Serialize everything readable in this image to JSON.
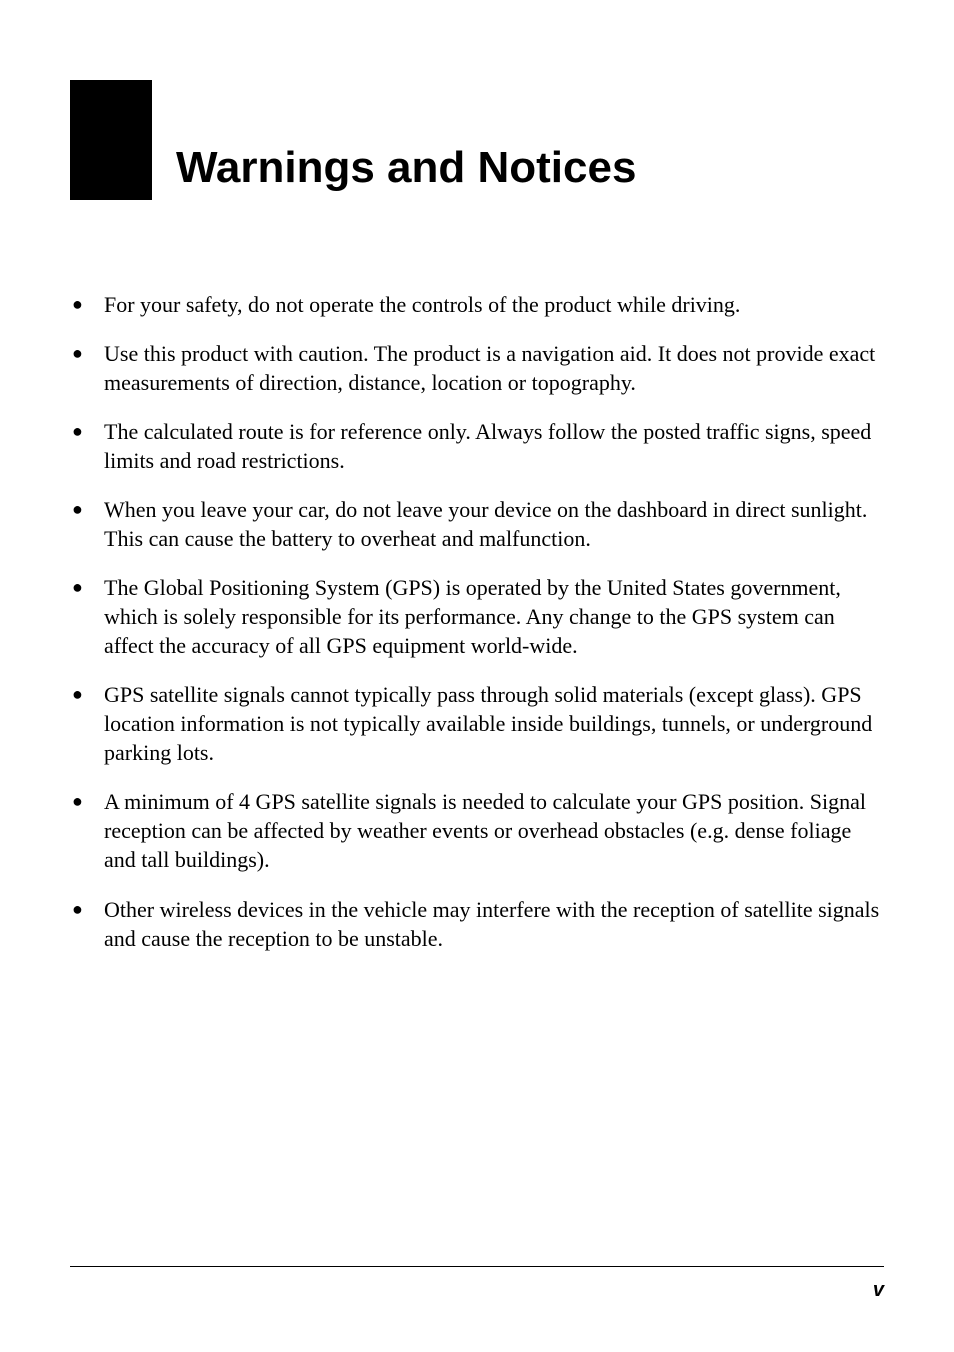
{
  "page": {
    "title": "Warnings and Notices",
    "page_number": "v",
    "background_color": "#ffffff",
    "text_color": "#000000",
    "title_box_color": "#000000",
    "title_font_family": "Arial",
    "title_font_weight": 700,
    "title_font_size_pt": 33,
    "body_font_family": "Times New Roman",
    "body_font_size_pt": 16,
    "bullet_glyph": "●",
    "bullets": [
      "For your safety, do not operate the controls of the product while driving.",
      "Use this product with caution. The product is a navigation aid. It does not provide exact measurements of direction, distance, location or topography.",
      "The calculated route is for reference only. Always follow the posted traffic signs, speed limits and road restrictions.",
      "When you leave your car, do not leave your device on the dashboard in direct sunlight. This can cause the battery to overheat and malfunction.",
      "The Global Positioning System (GPS) is operated by the United States government, which is solely responsible for its performance. Any change to the GPS system can affect the accuracy of all GPS equipment world-wide.",
      "GPS satellite signals cannot typically pass through solid materials (except glass). GPS location information is not typically available inside buildings, tunnels, or underground parking lots.",
      "A minimum of 4 GPS satellite signals is needed to calculate your GPS position. Signal reception can be affected by weather events or overhead obstacles (e.g. dense foliage and tall buildings).",
      "Other wireless devices in the vehicle may interfere with the reception of satellite signals and cause the reception to be unstable."
    ]
  }
}
